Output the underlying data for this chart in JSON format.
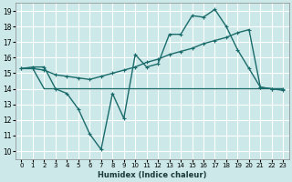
{
  "xlabel": "Humidex (Indice chaleur)",
  "bg_color": "#cce8e8",
  "grid_color": "#ffffff",
  "line_color": "#1a6b6b",
  "xlim": [
    -0.5,
    23.5
  ],
  "ylim": [
    9.5,
    19.5
  ],
  "xticks": [
    0,
    1,
    2,
    3,
    4,
    5,
    6,
    7,
    8,
    9,
    10,
    11,
    12,
    13,
    14,
    15,
    16,
    17,
    18,
    19,
    20,
    21,
    22,
    23
  ],
  "yticks": [
    10,
    11,
    12,
    13,
    14,
    15,
    16,
    17,
    18,
    19
  ],
  "series1_x": [
    0,
    1,
    2,
    3,
    4,
    5,
    6,
    7,
    8,
    9,
    10,
    11,
    12,
    13,
    14,
    15,
    16,
    17,
    18,
    19,
    20,
    21,
    22,
    23
  ],
  "series1_y": [
    15.3,
    15.4,
    15.4,
    14.0,
    13.7,
    12.7,
    11.1,
    10.1,
    13.7,
    12.1,
    16.2,
    15.4,
    15.6,
    17.5,
    17.5,
    18.7,
    18.6,
    19.1,
    18.0,
    16.5,
    15.3,
    14.1,
    14.0,
    13.9
  ],
  "series2_x": [
    0,
    1,
    2,
    3,
    22,
    23
  ],
  "series2_y": [
    15.3,
    15.3,
    14.0,
    14.0,
    14.0,
    14.0
  ],
  "series3_x": [
    0,
    1,
    2,
    3,
    4,
    5,
    6,
    7,
    8,
    9,
    10,
    11,
    12,
    13,
    14,
    15,
    16,
    17,
    18,
    19,
    20,
    21,
    22,
    23
  ],
  "series3_y": [
    15.3,
    15.3,
    15.2,
    14.9,
    14.8,
    14.7,
    14.6,
    14.8,
    15.0,
    15.2,
    15.4,
    15.7,
    15.9,
    16.2,
    16.4,
    16.6,
    16.9,
    17.1,
    17.3,
    17.6,
    17.8,
    14.1,
    14.0,
    14.0
  ]
}
